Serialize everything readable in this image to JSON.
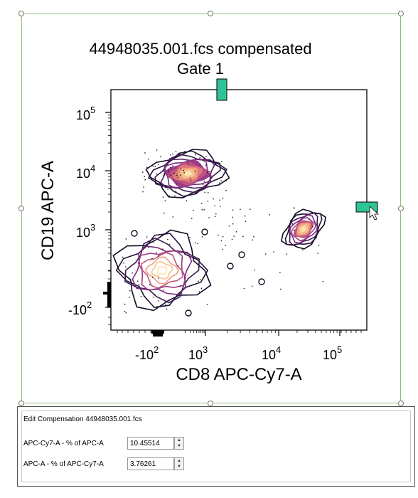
{
  "chart_data": {
    "type": "contour",
    "title": "44948035.001.fcs compensated",
    "subtitle": "Gate 1",
    "xlabel": "CD8 APC-Cy7-A",
    "ylabel": "CD19 APC-A",
    "x_scale": "biexponential",
    "y_scale": "biexponential",
    "xticks": [
      {
        "base": "-10",
        "exp": "2",
        "value": -100
      },
      {
        "base": "10",
        "exp": "3",
        "value": 1000
      },
      {
        "base": "10",
        "exp": "4",
        "value": 10000
      },
      {
        "base": "10",
        "exp": "5",
        "value": 100000
      }
    ],
    "yticks": [
      {
        "base": "-10",
        "exp": "2",
        "value": -100
      },
      {
        "base": "10",
        "exp": "3",
        "value": 1000
      },
      {
        "base": "10",
        "exp": "4",
        "value": 10000
      },
      {
        "base": "10",
        "exp": "5",
        "value": 100000
      }
    ],
    "populations": [
      {
        "name_hint": "upper-left",
        "x_center": 600,
        "y_center": 9000
      },
      {
        "name_hint": "lower-left",
        "x_center": 50,
        "y_center": 100
      },
      {
        "name_hint": "right",
        "x_center": 25000,
        "y_center": 1200
      }
    ],
    "grid": false,
    "legend": "none",
    "colors": {
      "outer_contour": "#1a1030",
      "mid_contour": "#7a2a80",
      "inner_fill": "#f3b483",
      "core": "#fde9b5",
      "compensation_handle": "#2fc497"
    }
  },
  "compensation": {
    "title": "Edit Compensation 44948035.001.fcs",
    "rows": [
      {
        "label": "APC-Cy7-A - % of APC-A",
        "value": "10.45514"
      },
      {
        "label": "APC-A - % of APC-Cy7-A",
        "value": "3.76261"
      }
    ],
    "spin_up": "▲",
    "spin_down": "▼"
  }
}
